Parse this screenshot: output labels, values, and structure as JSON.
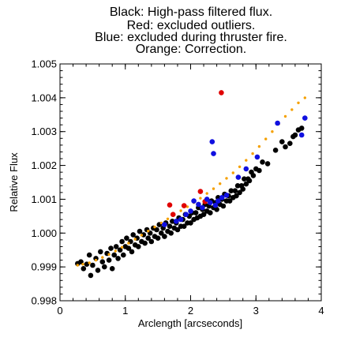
{
  "chart_data": {
    "type": "scatter",
    "title_lines": [
      "Black: High-pass filtered flux.",
      "Red: excluded outliers.",
      "Blue: excluded during thruster fire.",
      "Orange: Correction."
    ],
    "xlabel": "Arclength [arcseconds]",
    "ylabel": "Relative Flux",
    "xlim": [
      0,
      4
    ],
    "ylim": [
      0.998,
      1.005
    ],
    "xticks": [
      "0",
      "1",
      "2",
      "3",
      "4"
    ],
    "xtick_values": [
      0,
      1,
      2,
      3,
      4
    ],
    "yticks": [
      "0.998",
      "0.999",
      "1.000",
      "1.001",
      "1.002",
      "1.003",
      "1.004",
      "1.005"
    ],
    "ytick_values": [
      0.998,
      0.999,
      1.0,
      1.001,
      1.002,
      1.003,
      1.004,
      1.005
    ],
    "grid": false,
    "colors": {
      "black": "#000000",
      "red": "#e00000",
      "blue": "#1010e0",
      "orange": "#f5a000"
    },
    "series": [
      {
        "color": "black",
        "points": [
          [
            0.27,
            0.9991
          ],
          [
            0.32,
            0.99915
          ],
          [
            0.36,
            0.99895
          ],
          [
            0.41,
            0.99908
          ],
          [
            0.45,
            0.99935
          ],
          [
            0.47,
            0.99875
          ],
          [
            0.5,
            0.99905
          ],
          [
            0.55,
            0.99925
          ],
          [
            0.58,
            0.9989
          ],
          [
            0.62,
            0.99945
          ],
          [
            0.65,
            0.99915
          ],
          [
            0.68,
            0.999
          ],
          [
            0.72,
            0.9994
          ],
          [
            0.75,
            0.9992
          ],
          [
            0.78,
            0.99955
          ],
          [
            0.8,
            0.99895
          ],
          [
            0.83,
            0.99935
          ],
          [
            0.86,
            0.9996
          ],
          [
            0.89,
            0.99925
          ],
          [
            0.92,
            0.9995
          ],
          [
            0.95,
            0.99975
          ],
          [
            0.97,
            0.99935
          ],
          [
            1.0,
            0.9996
          ],
          [
            1.02,
            0.99985
          ],
          [
            1.05,
            0.99955
          ],
          [
            1.08,
            0.99975
          ],
          [
            1.1,
            0.99945
          ],
          [
            1.12,
            0.99995
          ],
          [
            1.15,
            0.99965
          ],
          [
            1.18,
            0.99985
          ],
          [
            1.2,
            0.9996
          ],
          [
            1.22,
            1.00005
          ],
          [
            1.25,
            0.99975
          ],
          [
            1.28,
            0.99995
          ],
          [
            1.3,
            0.9997
          ],
          [
            1.33,
            1.0001
          ],
          [
            1.35,
            0.99985
          ],
          [
            1.38,
            1.0
          ],
          [
            1.4,
            0.99975
          ],
          [
            1.43,
            1.00015
          ],
          [
            1.45,
            0.9999
          ],
          [
            1.48,
            1.0001
          ],
          [
            1.5,
            0.99985
          ],
          [
            1.52,
            1.00025
          ],
          [
            1.55,
            1.0
          ],
          [
            1.58,
            1.00015
          ],
          [
            1.6,
            0.9999
          ],
          [
            1.62,
            1.0003
          ],
          [
            1.65,
            1.00005
          ],
          [
            1.68,
            1.0002
          ],
          [
            1.7,
            1.0
          ],
          [
            1.72,
            1.00035
          ],
          [
            1.75,
            1.00015
          ],
          [
            1.78,
            1.0003
          ],
          [
            1.8,
            1.0001
          ],
          [
            1.82,
            1.00045
          ],
          [
            1.85,
            1.0002
          ],
          [
            1.88,
            1.0004
          ],
          [
            1.9,
            1.0002
          ],
          [
            1.92,
            1.00055
          ],
          [
            1.95,
            1.0003
          ],
          [
            1.98,
            1.0005
          ],
          [
            2.0,
            1.0003
          ],
          [
            2.02,
            1.0006
          ],
          [
            2.05,
            1.0004
          ],
          [
            2.08,
            1.0006
          ],
          [
            2.1,
            1.00045
          ],
          [
            2.12,
            1.00075
          ],
          [
            2.15,
            1.0005
          ],
          [
            2.18,
            1.0007
          ],
          [
            2.2,
            1.00055
          ],
          [
            2.22,
            1.00085
          ],
          [
            2.25,
            1.00065
          ],
          [
            2.28,
            1.0008
          ],
          [
            2.3,
            1.0006
          ],
          [
            2.32,
            1.00095
          ],
          [
            2.35,
            1.00075
          ],
          [
            2.38,
            1.0009
          ],
          [
            2.4,
            1.0007
          ],
          [
            2.42,
            1.00105
          ],
          [
            2.45,
            1.00085
          ],
          [
            2.48,
            1.001
          ],
          [
            2.5,
            1.0008
          ],
          [
            2.52,
            1.00115
          ],
          [
            2.55,
            1.00095
          ],
          [
            2.58,
            1.0011
          ],
          [
            2.6,
            1.00095
          ],
          [
            2.62,
            1.00125
          ],
          [
            2.65,
            1.00105
          ],
          [
            2.68,
            1.00125
          ],
          [
            2.7,
            1.0011
          ],
          [
            2.72,
            1.0014
          ],
          [
            2.75,
            1.0012
          ],
          [
            2.78,
            1.0014
          ],
          [
            2.8,
            1.0013
          ],
          [
            2.82,
            1.0016
          ],
          [
            2.85,
            1.00145
          ],
          [
            2.88,
            1.0016
          ],
          [
            2.9,
            1.00155
          ],
          [
            2.93,
            1.0018
          ],
          [
            2.96,
            1.0017
          ],
          [
            3.0,
            1.0019
          ],
          [
            3.05,
            1.00185
          ],
          [
            3.1,
            1.0021
          ],
          [
            3.18,
            1.00205
          ],
          [
            3.3,
            1.00245
          ],
          [
            3.4,
            1.0027
          ],
          [
            3.45,
            1.00255
          ],
          [
            3.52,
            1.00265
          ],
          [
            3.57,
            1.00285
          ],
          [
            3.6,
            1.0029
          ],
          [
            3.65,
            1.00305
          ],
          [
            3.7,
            1.0031
          ]
        ]
      },
      {
        "color": "red",
        "points": [
          [
            2.47,
            1.00415
          ],
          [
            2.15,
            1.00123
          ],
          [
            1.68,
            1.00083
          ],
          [
            1.9,
            1.00081
          ],
          [
            2.22,
            1.00093
          ],
          [
            1.73,
            1.00055
          ]
        ]
      },
      {
        "color": "blue",
        "points": [
          [
            3.75,
            1.0034
          ],
          [
            3.33,
            1.00325
          ],
          [
            3.7,
            1.0029
          ],
          [
            2.85,
            1.0019
          ],
          [
            2.33,
            1.0027
          ],
          [
            2.35,
            1.00235
          ],
          [
            3.02,
            1.00225
          ],
          [
            2.73,
            1.00165
          ],
          [
            2.05,
            1.00095
          ],
          [
            2.12,
            1.00085
          ],
          [
            2.18,
            1.00075
          ],
          [
            2.25,
            1.001
          ],
          [
            2.3,
            1.0009
          ],
          [
            2.42,
            1.00095
          ],
          [
            2.48,
            1.00105
          ],
          [
            2.0,
            1.00065
          ],
          [
            1.93,
            1.00055
          ],
          [
            1.85,
            1.0004
          ],
          [
            1.78,
            1.00035
          ],
          [
            1.6,
            1.00025
          ],
          [
            2.38,
            1.00082
          ],
          [
            2.55,
            1.00112
          ]
        ]
      },
      {
        "color": "orange",
        "points": [
          [
            0.27,
            0.99905
          ],
          [
            0.35,
            0.99908
          ],
          [
            0.45,
            0.99912
          ],
          [
            0.55,
            0.9992
          ],
          [
            0.65,
            0.99928
          ],
          [
            0.75,
            0.99937
          ],
          [
            0.85,
            0.99947
          ],
          [
            0.95,
            0.99958
          ],
          [
            1.05,
            0.9997
          ],
          [
            1.15,
            0.99982
          ],
          [
            1.25,
            0.99994
          ],
          [
            1.35,
            1.00006
          ],
          [
            1.45,
            1.00018
          ],
          [
            1.55,
            1.0003
          ],
          [
            1.65,
            1.00042
          ],
          [
            1.75,
            1.00054
          ],
          [
            1.85,
            1.00066
          ],
          [
            1.95,
            1.00078
          ],
          [
            2.05,
            1.0009
          ],
          [
            2.15,
            1.00103
          ],
          [
            2.25,
            1.00117
          ],
          [
            2.35,
            1.00131
          ],
          [
            2.45,
            1.00146
          ],
          [
            2.55,
            1.00162
          ],
          [
            2.65,
            1.00178
          ],
          [
            2.75,
            1.00196
          ],
          [
            2.85,
            1.00215
          ],
          [
            2.95,
            1.00235
          ],
          [
            3.05,
            1.00256
          ],
          [
            3.15,
            1.00278
          ],
          [
            3.25,
            1.003
          ],
          [
            3.35,
            1.00323
          ],
          [
            3.45,
            1.00345
          ],
          [
            3.55,
            1.00365
          ],
          [
            3.65,
            1.00385
          ],
          [
            3.75,
            1.004
          ]
        ]
      }
    ]
  }
}
